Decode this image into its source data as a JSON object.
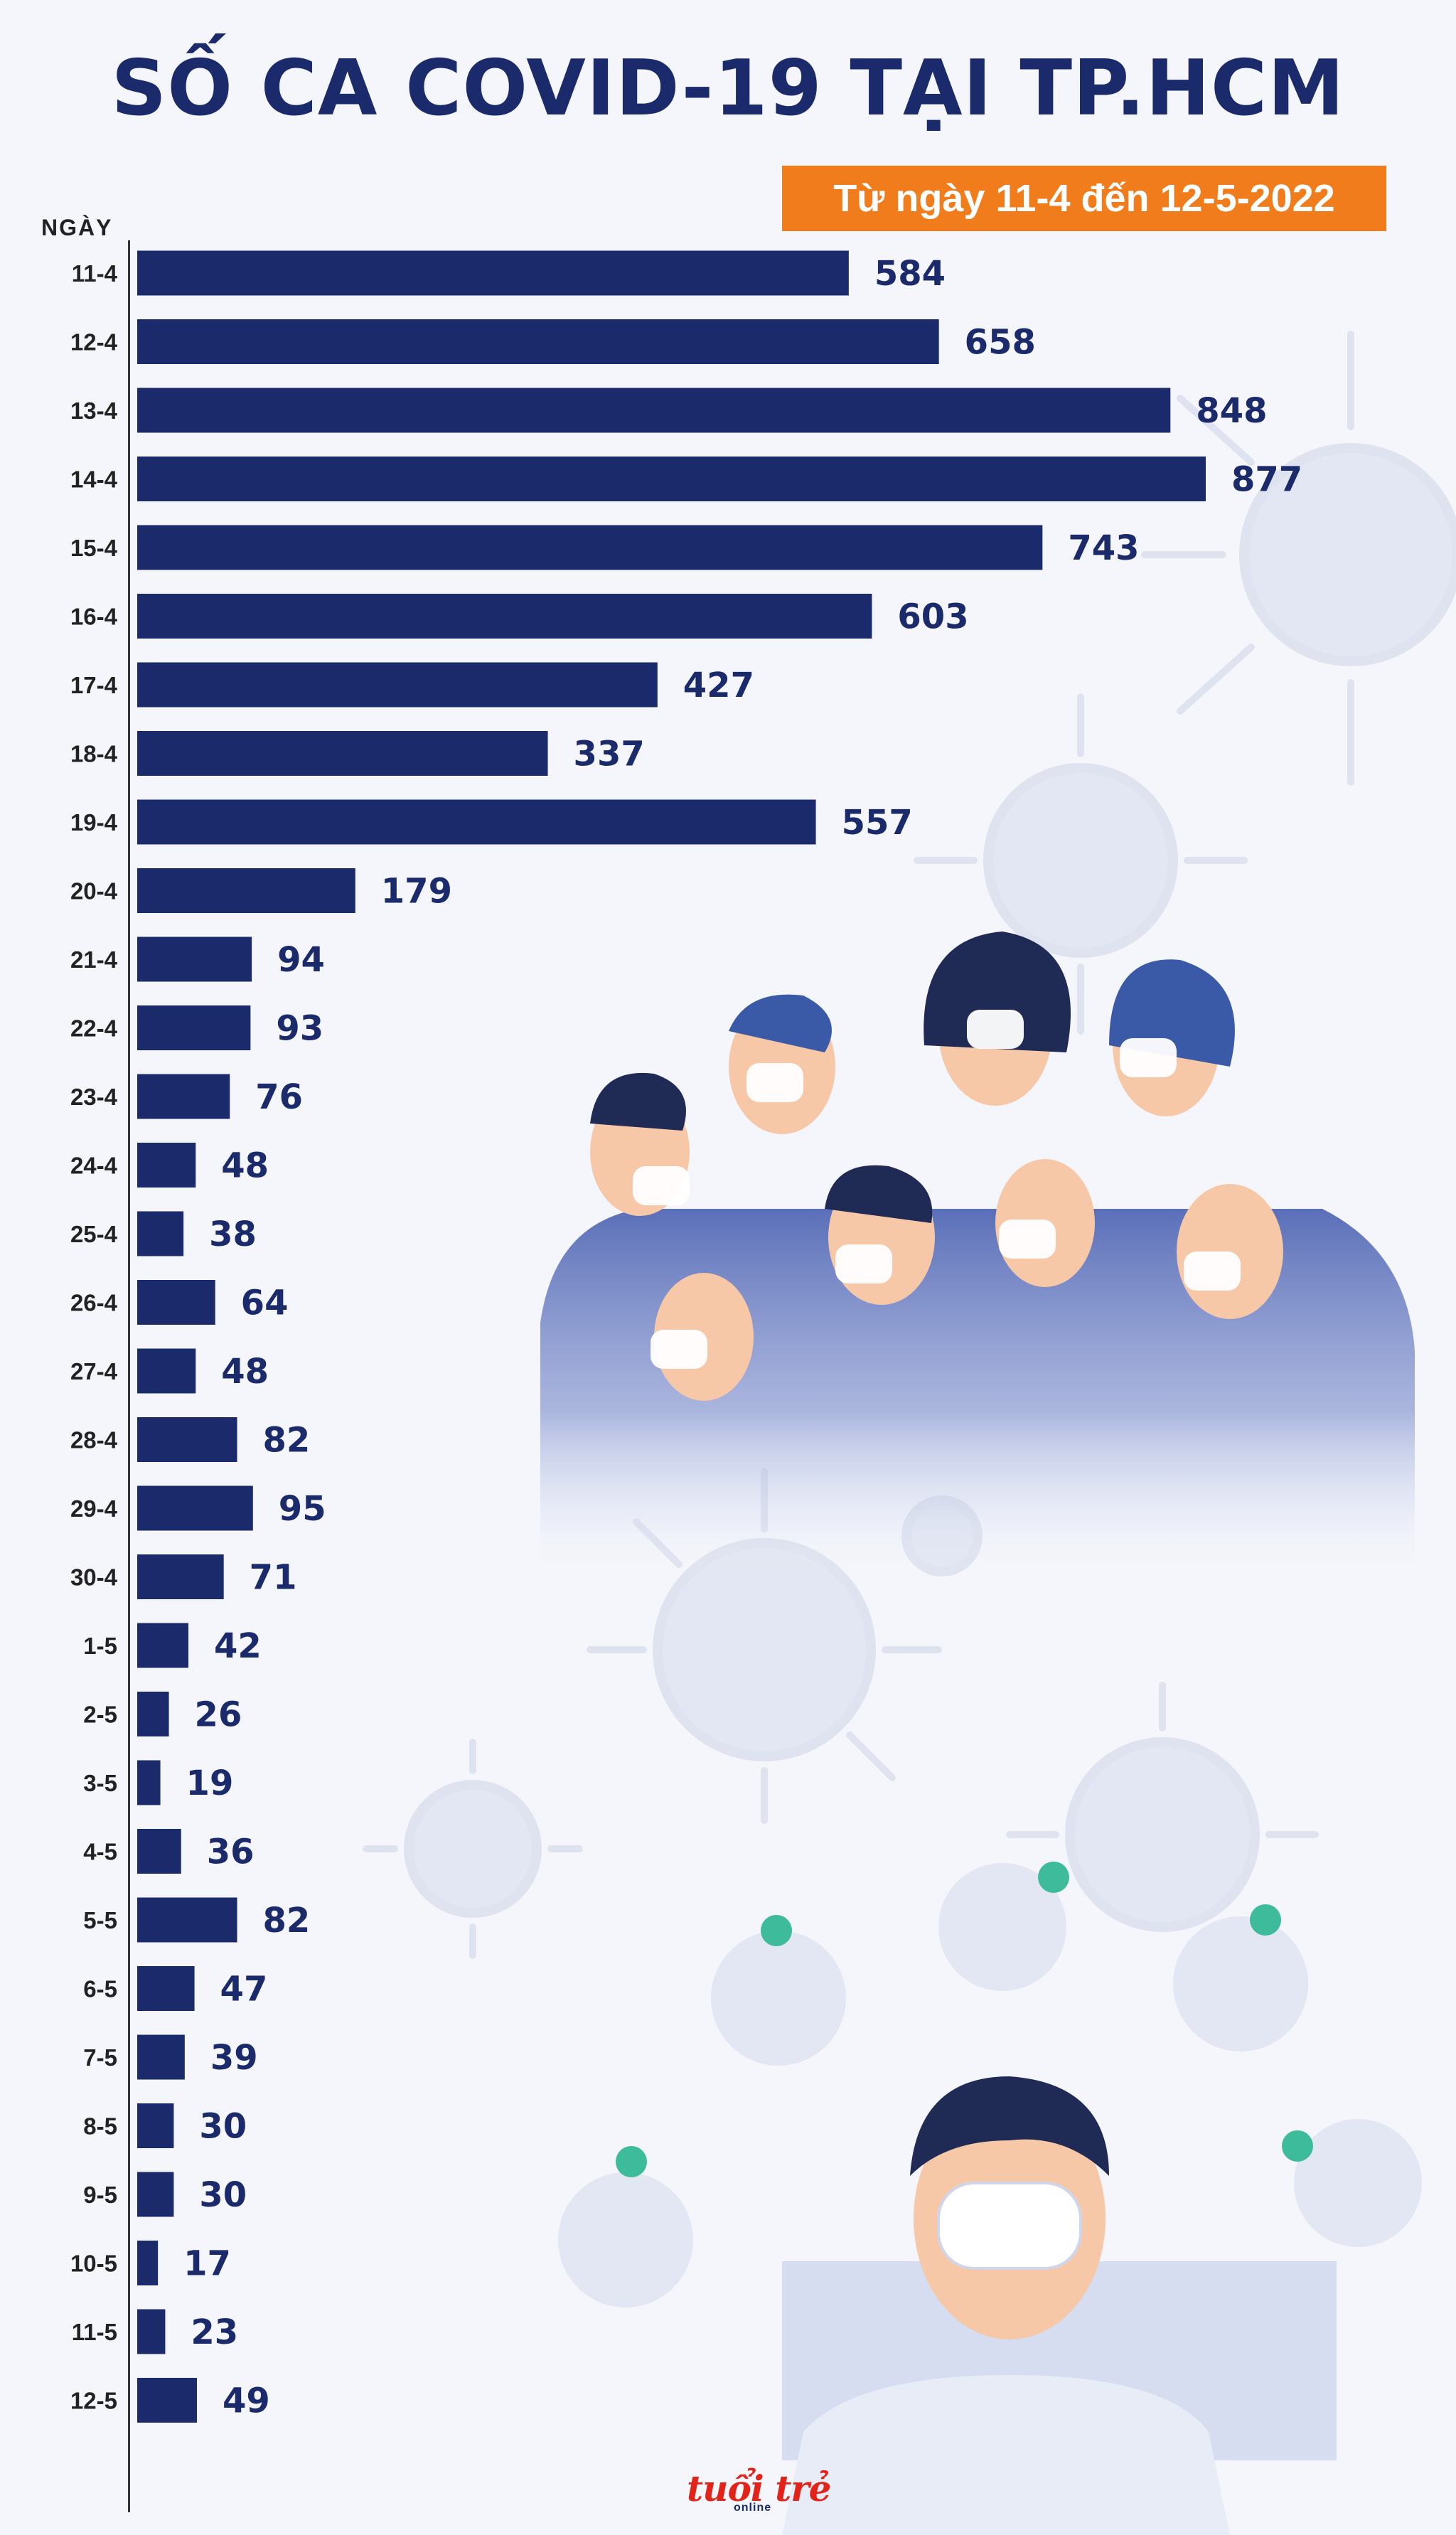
{
  "chart_data": {
    "type": "bar",
    "orientation": "horizontal",
    "title": "SỐ CA COVID-19 TẠI TP.HCM",
    "subtitle": "Từ ngày 11-4 đến 12-5-2022",
    "ylabel": "NGÀY",
    "xlabel": "",
    "xlim": [
      0,
      877
    ],
    "bar_color": "#1b2a6b",
    "categories": [
      "11-4",
      "12-4",
      "13-4",
      "14-4",
      "15-4",
      "16-4",
      "17-4",
      "18-4",
      "19-4",
      "20-4",
      "21-4",
      "22-4",
      "23-4",
      "24-4",
      "25-4",
      "26-4",
      "27-4",
      "28-4",
      "29-4",
      "30-4",
      "1-5",
      "2-5",
      "3-5",
      "4-5",
      "5-5",
      "6-5",
      "7-5",
      "8-5",
      "9-5",
      "10-5",
      "11-5",
      "12-5"
    ],
    "values": [
      584,
      658,
      848,
      877,
      743,
      603,
      427,
      337,
      557,
      179,
      94,
      93,
      76,
      48,
      38,
      64,
      48,
      82,
      95,
      71,
      42,
      26,
      19,
      36,
      82,
      47,
      39,
      30,
      30,
      17,
      23,
      49
    ]
  },
  "colors": {
    "accent": "#f07c1c",
    "bar": "#1b2a6b",
    "background": "#f4f6fb",
    "logo": "#e2231a"
  },
  "logo": {
    "brand": "tuổi trẻ",
    "sub": "online"
  }
}
